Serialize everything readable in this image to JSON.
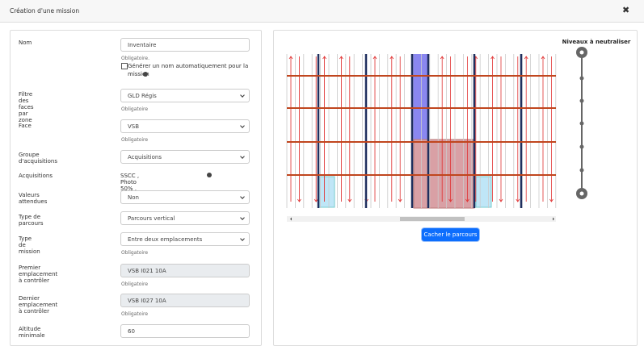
{
  "header": {
    "title": "Création d'une mission"
  },
  "form": {
    "fields": [
      {
        "label": "Nom",
        "value": "Inventaire",
        "help": "Obligatoire."
      },
      {
        "label": "Filtre des faces par zone",
        "value": "GLD Régis",
        "help": "Obligatoire"
      },
      {
        "label": "Face",
        "value": "VSB",
        "help": "Obligatoire"
      },
      {
        "label": "Groupe d'acquisitions",
        "value": "Acquisitions"
      },
      {
        "label": "Acquisitions",
        "value": "SSCC , Photo 50% , Interest Point"
      },
      {
        "label": "Valeurs attendues",
        "value": "Non"
      },
      {
        "label": "Type de parcours",
        "value": "Parcours vertical"
      },
      {
        "label": "Type de mission",
        "value": "Entre deux emplacements",
        "help": "Obligatoire"
      },
      {
        "label": "Premier emplacement à contrôler",
        "value": "VSB I021 10A",
        "help": "Obligatoire"
      },
      {
        "label": "Dernier emplacement à contrôler",
        "value": "VSB I027 10A",
        "help": "Obligatoire"
      },
      {
        "label": "Altitude minimale",
        "value": "60"
      }
    ],
    "checkbox": "Générer un nom automatiquement pour la mission"
  },
  "diagram": {
    "button": "Cacher le parcours",
    "slider_title": "Niveaux à neutraliser"
  }
}
